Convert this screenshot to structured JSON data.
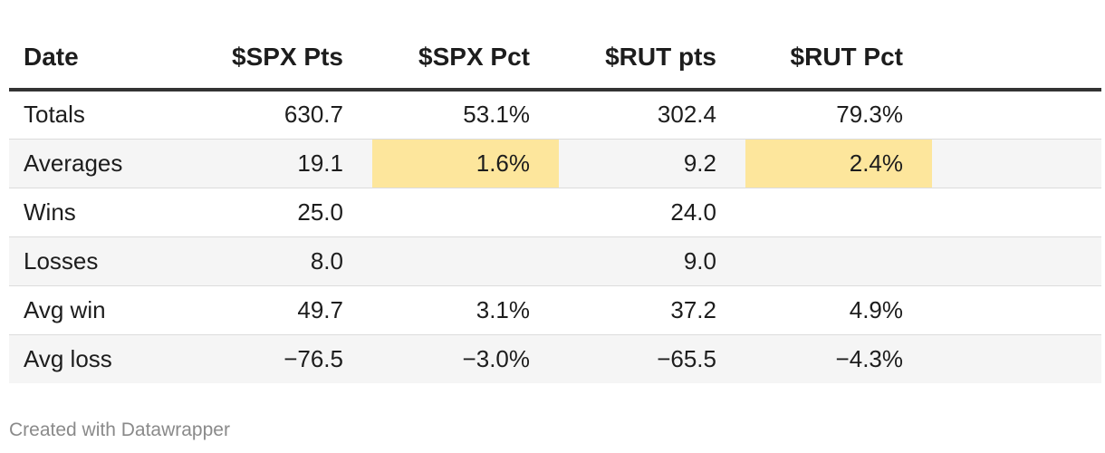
{
  "chart_data": {
    "type": "table",
    "columns": [
      "Date",
      "$SPX Pts",
      "$SPX Pct",
      "$RUT pts",
      "$RUT Pct"
    ],
    "rows": [
      {
        "label": "Totals",
        "spx_pts": "630.7",
        "spx_pct": "53.1%",
        "rut_pts": "302.4",
        "rut_pct": "79.3%"
      },
      {
        "label": "Averages",
        "spx_pts": "19.1",
        "spx_pct": "1.6%",
        "rut_pts": "9.2",
        "rut_pct": "2.4%"
      },
      {
        "label": "Wins",
        "spx_pts": "25.0",
        "spx_pct": "",
        "rut_pts": "24.0",
        "rut_pct": ""
      },
      {
        "label": "Losses",
        "spx_pts": "8.0",
        "spx_pct": "",
        "rut_pts": "9.0",
        "rut_pct": ""
      },
      {
        "label": "Avg win",
        "spx_pts": "49.7",
        "spx_pct": "3.1%",
        "rut_pts": "37.2",
        "rut_pct": "4.9%"
      },
      {
        "label": "Avg loss",
        "spx_pts": "−76.5",
        "spx_pct": "−3.0%",
        "rut_pts": "−65.5",
        "rut_pct": "−4.3%"
      }
    ],
    "highlighted_cells": [
      {
        "row": "Averages",
        "column": "$SPX Pct"
      },
      {
        "row": "Averages",
        "column": "$RUT Pct"
      }
    ],
    "highlight_color": "#fde69c",
    "stripe_color": "#f5f5f5"
  },
  "footer": {
    "credit": "Created with Datawrapper"
  }
}
